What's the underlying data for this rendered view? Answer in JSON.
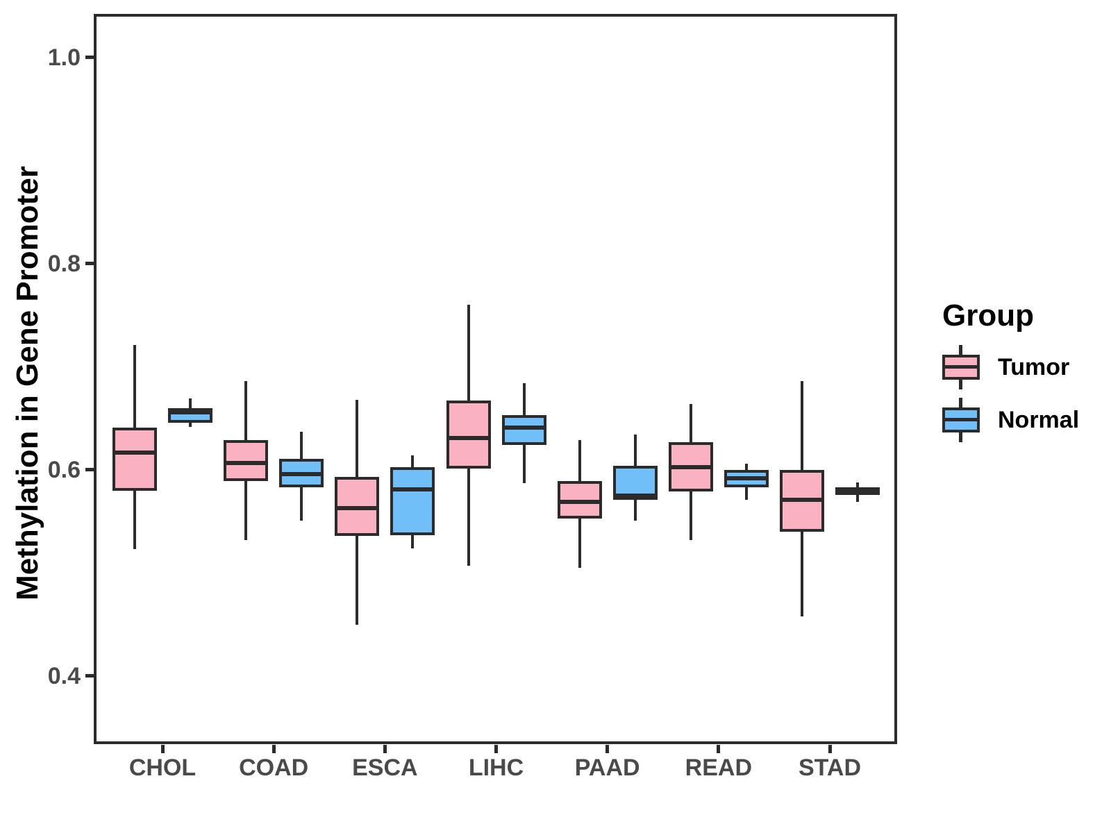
{
  "chart_data": {
    "type": "box",
    "title": "",
    "xlabel": "",
    "ylabel": "Methylation in Gene Promoter",
    "grid": false,
    "legend_position": "right",
    "ylim": [
      0.334,
      1.042
    ],
    "yticks": [
      1.0,
      0.8,
      0.6,
      0.4
    ],
    "ytick_labels": [
      "1.0",
      "0.8",
      "0.6",
      "0.4"
    ],
    "categories": [
      "CHOL",
      "COAD",
      "ESCA",
      "LIHC",
      "PAAD",
      "READ",
      "STAD"
    ],
    "series": [
      {
        "name": "Tumor",
        "color": "#FAB1C1",
        "boxes": [
          {
            "min": 0.523,
            "q1": 0.58,
            "median": 0.617,
            "q3": 0.641,
            "max": 0.721
          },
          {
            "min": 0.532,
            "q1": 0.589,
            "median": 0.607,
            "q3": 0.629,
            "max": 0.686
          },
          {
            "min": 0.45,
            "q1": 0.536,
            "median": 0.563,
            "q3": 0.593,
            "max": 0.668
          },
          {
            "min": 0.507,
            "q1": 0.601,
            "median": 0.631,
            "q3": 0.667,
            "max": 0.76
          },
          {
            "min": 0.505,
            "q1": 0.553,
            "median": 0.569,
            "q3": 0.589,
            "max": 0.629
          },
          {
            "min": 0.532,
            "q1": 0.579,
            "median": 0.603,
            "q3": 0.627,
            "max": 0.664
          },
          {
            "min": 0.458,
            "q1": 0.54,
            "median": 0.571,
            "q3": 0.6,
            "max": 0.686
          }
        ]
      },
      {
        "name": "Normal",
        "color": "#70BFF8",
        "boxes": [
          {
            "min": 0.642,
            "q1": 0.646,
            "median": 0.656,
            "q3": 0.66,
            "max": 0.669
          },
          {
            "min": 0.551,
            "q1": 0.583,
            "median": 0.596,
            "q3": 0.611,
            "max": 0.637
          },
          {
            "min": 0.524,
            "q1": 0.537,
            "median": 0.581,
            "q3": 0.603,
            "max": 0.614
          },
          {
            "min": 0.587,
            "q1": 0.624,
            "median": 0.641,
            "q3": 0.653,
            "max": 0.684
          },
          {
            "min": 0.551,
            "q1": 0.571,
            "median": 0.575,
            "q3": 0.604,
            "max": 0.634
          },
          {
            "min": 0.571,
            "q1": 0.583,
            "median": 0.592,
            "q3": 0.6,
            "max": 0.606
          },
          {
            "min": 0.569,
            "q1": 0.576,
            "median": 0.579,
            "q3": 0.583,
            "max": 0.588
          }
        ]
      }
    ]
  },
  "legend": {
    "title": "Group",
    "entries": [
      {
        "label": "Tumor"
      },
      {
        "label": "Normal"
      }
    ]
  },
  "colors": {
    "tumor_fill": "#FAB1C1",
    "normal_fill": "#70BFF8",
    "box_border": "#2B2B2B",
    "axis_text": "#4A4A4A",
    "axis_title": "#000000",
    "panel_border": "#2B2B2B",
    "background": "#FFFFFF"
  }
}
